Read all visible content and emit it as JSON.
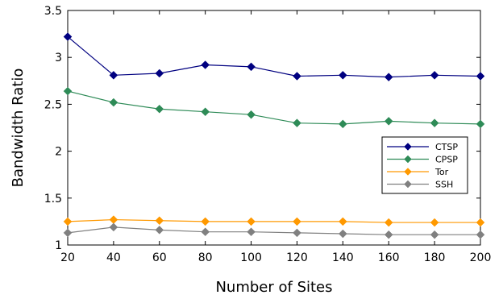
{
  "chart_data": {
    "type": "line",
    "title": "",
    "xlabel": "Number of Sites",
    "ylabel": "Bandwidth Ratio",
    "x": [
      20,
      40,
      60,
      80,
      100,
      120,
      140,
      160,
      180,
      200
    ],
    "xlim": [
      20,
      200
    ],
    "ylim": [
      1,
      3.5
    ],
    "xticks": [
      "20",
      "40",
      "60",
      "80",
      "100",
      "120",
      "140",
      "160",
      "180",
      "200"
    ],
    "yticks": [
      "1",
      "1.5",
      "2",
      "2.5",
      "3",
      "3.5"
    ],
    "grid": false,
    "legend_position": "right",
    "series": [
      {
        "name": "CTSP",
        "color": "#000080",
        "marker": "diamond",
        "values": [
          3.22,
          2.81,
          2.83,
          2.92,
          2.9,
          2.8,
          2.81,
          2.79,
          2.81,
          2.8
        ]
      },
      {
        "name": "CPSP",
        "color": "#2e8b57",
        "marker": "diamond",
        "values": [
          2.64,
          2.52,
          2.45,
          2.42,
          2.39,
          2.3,
          2.29,
          2.32,
          2.3,
          2.29
        ]
      },
      {
        "name": "Tor",
        "color": "#ff9900",
        "marker": "diamond",
        "values": [
          1.25,
          1.27,
          1.26,
          1.25,
          1.25,
          1.25,
          1.25,
          1.24,
          1.24,
          1.24
        ]
      },
      {
        "name": "SSH",
        "color": "#808080",
        "marker": "diamond",
        "values": [
          1.13,
          1.19,
          1.16,
          1.14,
          1.14,
          1.13,
          1.12,
          1.11,
          1.11,
          1.11
        ]
      }
    ]
  }
}
